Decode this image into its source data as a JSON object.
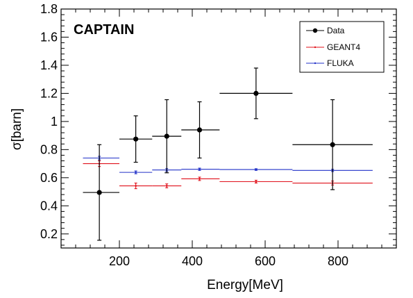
{
  "chart_data": {
    "type": "scatter",
    "title": "CAPTAIN",
    "xlabel": "Energy[MeV]",
    "ylabel": "σ[barn]",
    "xlim": [
      40,
      960
    ],
    "ylim": [
      0.1,
      1.8
    ],
    "x_ticks": [
      200,
      400,
      600,
      800
    ],
    "y_ticks": [
      0.2,
      0.4,
      0.6,
      0.8,
      1,
      1.2,
      1.4,
      1.6,
      1.8
    ],
    "y_tick_labels": [
      "0.2",
      "0.4",
      "0.6",
      "0.8",
      "1",
      "1.2",
      "1.4",
      "1.6",
      "1.8"
    ],
    "grid": false,
    "legend_position": "top-right",
    "series": [
      {
        "name": "Data",
        "color": "#000000",
        "marker": "circle",
        "points": [
          {
            "x": 145,
            "xlo": 100,
            "xhi": 200,
            "y": 0.495,
            "ylo": 0.155,
            "yhi": 0.835
          },
          {
            "x": 245,
            "xlo": 200,
            "xhi": 290,
            "y": 0.875,
            "ylo": 0.71,
            "yhi": 1.04
          },
          {
            "x": 330,
            "xlo": 290,
            "xhi": 370,
            "y": 0.895,
            "ylo": 0.635,
            "yhi": 1.155
          },
          {
            "x": 420,
            "xlo": 370,
            "xhi": 475,
            "y": 0.94,
            "ylo": 0.74,
            "yhi": 1.14
          },
          {
            "x": 575,
            "xlo": 475,
            "xhi": 675,
            "y": 1.2,
            "ylo": 1.02,
            "yhi": 1.38
          },
          {
            "x": 785,
            "xlo": 675,
            "xhi": 895,
            "y": 0.835,
            "ylo": 0.515,
            "yhi": 1.155
          }
        ]
      },
      {
        "name": "GEANT4",
        "color": "#e0101a",
        "marker": "dot",
        "points": [
          {
            "x": 145,
            "xlo": 100,
            "xhi": 200,
            "y": 0.7,
            "ylo": 0.68,
            "yhi": 0.72
          },
          {
            "x": 245,
            "xlo": 200,
            "xhi": 290,
            "y": 0.542,
            "ylo": 0.522,
            "yhi": 0.562
          },
          {
            "x": 330,
            "xlo": 290,
            "xhi": 370,
            "y": 0.542,
            "ylo": 0.528,
            "yhi": 0.556
          },
          {
            "x": 420,
            "xlo": 370,
            "xhi": 475,
            "y": 0.592,
            "ylo": 0.58,
            "yhi": 0.604
          },
          {
            "x": 575,
            "xlo": 475,
            "xhi": 675,
            "y": 0.572,
            "ylo": 0.562,
            "yhi": 0.582
          },
          {
            "x": 785,
            "xlo": 675,
            "xhi": 895,
            "y": 0.562,
            "ylo": 0.548,
            "yhi": 0.576
          }
        ]
      },
      {
        "name": "FLUKA",
        "color": "#2030c8",
        "marker": "dot",
        "points": [
          {
            "x": 145,
            "xlo": 100,
            "xhi": 200,
            "y": 0.74,
            "ylo": 0.728,
            "yhi": 0.752
          },
          {
            "x": 245,
            "xlo": 200,
            "xhi": 290,
            "y": 0.638,
            "ylo": 0.628,
            "yhi": 0.648
          },
          {
            "x": 330,
            "xlo": 290,
            "xhi": 370,
            "y": 0.655,
            "ylo": 0.645,
            "yhi": 0.665
          },
          {
            "x": 420,
            "xlo": 370,
            "xhi": 475,
            "y": 0.66,
            "ylo": 0.652,
            "yhi": 0.668
          },
          {
            "x": 575,
            "xlo": 475,
            "xhi": 675,
            "y": 0.658,
            "ylo": 0.652,
            "yhi": 0.664
          },
          {
            "x": 785,
            "xlo": 675,
            "xhi": 895,
            "y": 0.652,
            "ylo": 0.644,
            "yhi": 0.66
          }
        ]
      }
    ]
  }
}
